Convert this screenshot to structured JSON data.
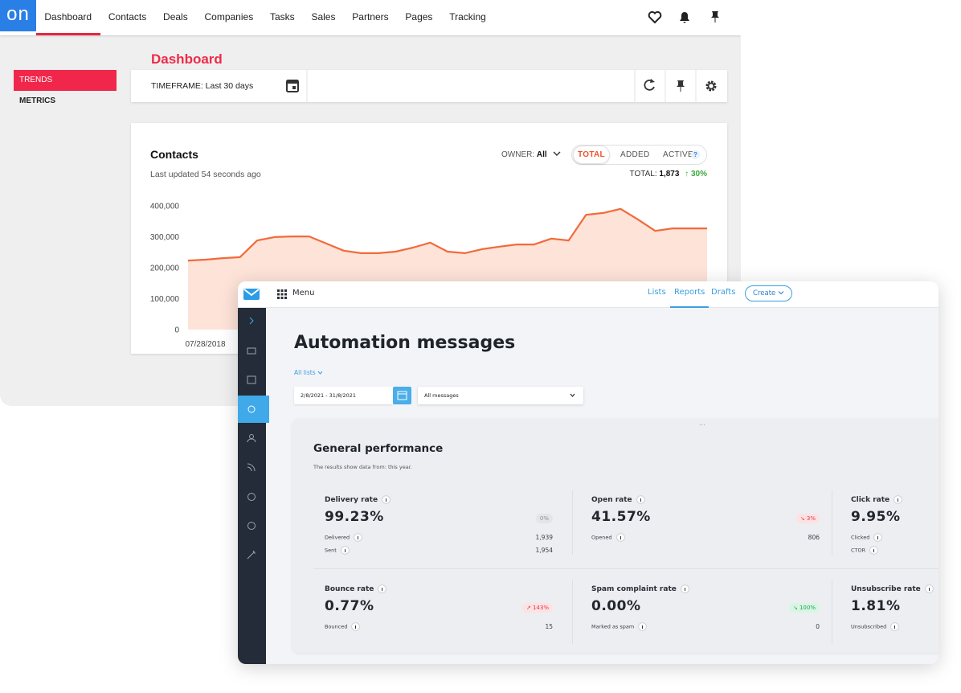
{
  "back_window": {
    "logo": "on",
    "nav": [
      "Dashboard",
      "Contacts",
      "Deals",
      "Companies",
      "Tasks",
      "Sales",
      "Partners",
      "Pages",
      "Tracking"
    ],
    "sidebar": [
      "TRENDS",
      "METRICS"
    ],
    "page_title": "Dashboard",
    "timeframe": "TIMEFRAME: Last 30 days",
    "card": {
      "title": "Contacts",
      "updated": "Last updated 54 seconds ago",
      "owner_label": "OWNER:",
      "owner_value": "All",
      "tabs": [
        "TOTAL",
        "ADDED",
        "ACTIVE"
      ],
      "help": "?",
      "total_label": "TOTAL:",
      "total_value": "1,873",
      "change": "↑ 30%"
    }
  },
  "chart_data": {
    "type": "area",
    "categories": [
      null,
      "07/28/2018",
      null,
      null,
      null,
      null,
      null,
      null,
      null,
      null,
      null,
      null,
      null,
      null,
      null,
      null,
      null,
      null,
      null,
      null,
      null,
      null,
      null,
      null,
      null,
      null,
      null,
      null,
      null,
      null,
      null
    ],
    "values": [
      223000,
      226000,
      231000,
      234000,
      288000,
      299000,
      301000,
      301000,
      278000,
      255000,
      247000,
      247000,
      252000,
      265000,
      281000,
      252000,
      247000,
      260000,
      268000,
      275000,
      275000,
      294000,
      288000,
      371000,
      377000,
      390000,
      356000,
      319000,
      327000,
      327000,
      327000
    ],
    "color": "#f26a3a",
    "ylim": [
      0,
      400000
    ],
    "yticks": [
      0,
      {
        "value": 100000,
        "label": "100,000"
      },
      {
        "value": 200000,
        "label": "200,000"
      },
      {
        "value": 300000,
        "label": "300,000"
      },
      {
        "value": 400000,
        "label": "400,000"
      }
    ],
    "grid": false
  },
  "front_window": {
    "menu": "Menu",
    "nav": [
      "Lists",
      "Reports",
      "Drafts"
    ],
    "create": "Create",
    "title": "Automation messages",
    "list_filter": "All lists",
    "date_range": "2/8/2021 - 31/8/2021",
    "message_filter": "All messages",
    "panel": {
      "handle": "···",
      "title": "General performance",
      "subtitle": "The results show data from: this year.",
      "metrics": [
        {
          "title": "Delivery rate",
          "value": "99.23%",
          "badge": "0%",
          "badge_color": "#8a8f98",
          "badge_bg": "#e3e5e9",
          "rows": [
            {
              "label": "Delivered",
              "value": "1,939"
            },
            {
              "label": "Sent",
              "value": "1,954"
            }
          ]
        },
        {
          "title": "Open rate",
          "value": "41.57%",
          "badge": "↘ 3%",
          "badge_color": "#e2364a",
          "badge_bg": "#fde2e4",
          "rows": [
            {
              "label": "Opened",
              "value": "806"
            }
          ]
        },
        {
          "title": "Click rate",
          "value": "9.95%",
          "rows": [
            {
              "label": "Clicked"
            },
            {
              "label": "CTOR"
            }
          ]
        },
        {
          "title": "Bounce rate",
          "value": "0.77%",
          "badge": "↗ 143%",
          "badge_color": "#e2364a",
          "badge_bg": "#fde2e4",
          "rows": [
            {
              "label": "Bounced",
              "value": "15"
            }
          ]
        },
        {
          "title": "Spam complaint rate",
          "value": "0.00%",
          "badge": "↘ 100%",
          "badge_color": "#1fa758",
          "badge_bg": "#d8f5e3",
          "rows": [
            {
              "label": "Marked as spam",
              "value": "0"
            }
          ]
        },
        {
          "title": "Unsubscribe rate",
          "value": "1.81%",
          "rows": [
            {
              "label": "Unsubscribed"
            }
          ]
        }
      ]
    }
  }
}
